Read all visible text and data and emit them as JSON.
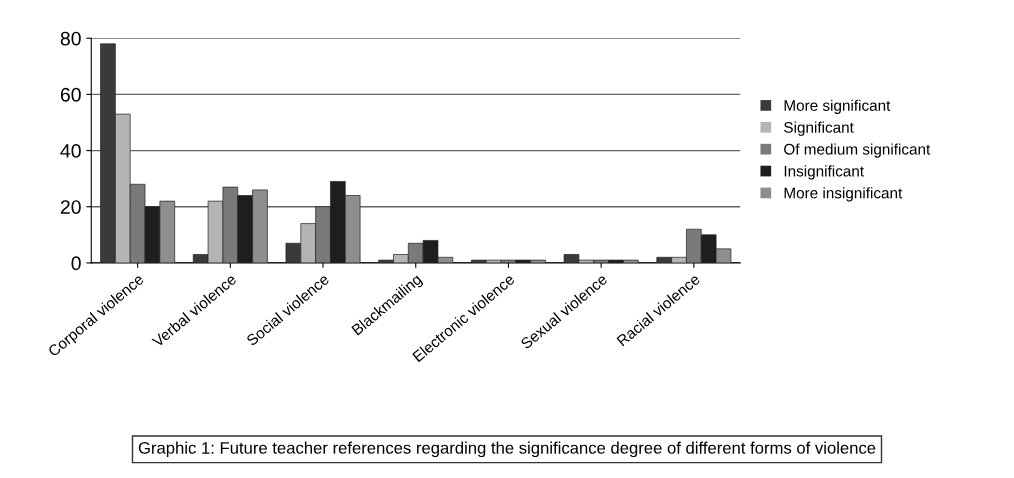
{
  "chart_data": {
    "type": "bar",
    "categories": [
      "Corporal violence",
      "Verbal violence",
      "Social violence",
      "Blackmailing",
      "Electronic violence",
      "Sexual violence",
      "Racial violence"
    ],
    "series": [
      {
        "name": "More significant",
        "color": "#3a3a3a",
        "values": [
          78,
          3,
          7,
          1,
          1,
          3,
          2
        ]
      },
      {
        "name": "Significant",
        "color": "#b4b4b4",
        "values": [
          53,
          22,
          14,
          3,
          1,
          1,
          2
        ]
      },
      {
        "name": "Of medium significant",
        "color": "#7a7a7a",
        "values": [
          28,
          27,
          20,
          7,
          1,
          1,
          12
        ]
      },
      {
        "name": "Insignificant",
        "color": "#1e1e1e",
        "values": [
          20,
          24,
          29,
          8,
          1,
          1,
          10
        ]
      },
      {
        "name": "More insignificant",
        "color": "#8e8e8e",
        "values": [
          22,
          26,
          24,
          2,
          1,
          1,
          5
        ]
      }
    ],
    "ylim": [
      0,
      80
    ],
    "yticks": [
      0,
      20,
      40,
      60,
      80
    ],
    "grid": "y",
    "legend": "right",
    "annotations": [
      "Graphic 1: Future teacher references regarding the significance degree of different forms of violence"
    ]
  }
}
